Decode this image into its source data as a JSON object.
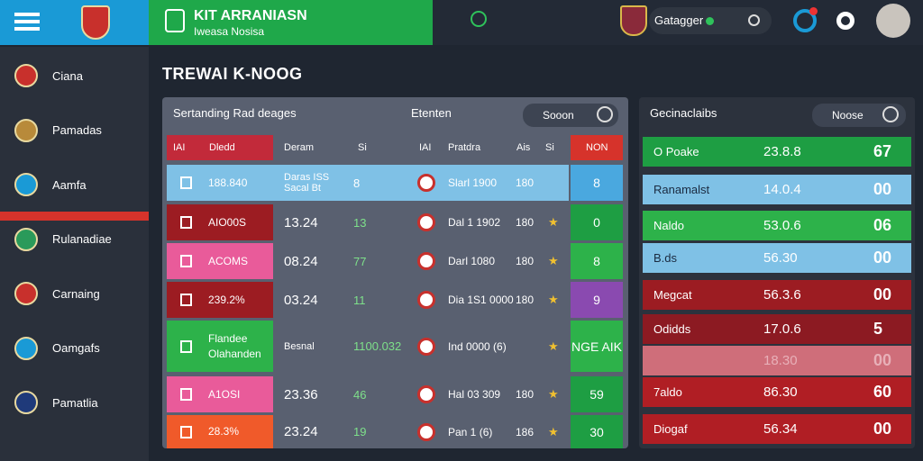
{
  "header": {
    "title": "KIT ARRANIASN",
    "subtitle": "Iweasa Nosisa",
    "search": "Gatagger"
  },
  "sidebar": {
    "items": [
      "Ciana",
      "Pamadas",
      "Aamfa",
      "Rulanadiae",
      "Carnaing",
      "Oamgafs",
      "Pamatlia"
    ]
  },
  "main_title": "TREWAI K-NOOG",
  "standings": {
    "title": "Sertanding Rad deages",
    "subtitle": "Etenten",
    "button": "Sooon",
    "columns": [
      "IAI",
      "Dledd",
      "Deram",
      "Si",
      "IAI",
      "Pratdra",
      "Ais",
      "Si",
      "NON"
    ],
    "rows": [
      [
        "188.840",
        "Daras ISS Sacal Bt",
        "8",
        "Slarl 1900",
        "180",
        "8"
      ],
      [
        "AIO00S",
        "13.24",
        "13",
        "Dal 1 1902",
        "180",
        "0"
      ],
      [
        "ACOMS",
        "08.24",
        "77",
        "Darl 1080",
        "180",
        "8"
      ],
      [
        "239.2%",
        "03.24",
        "11",
        "Dia 1S1 0000",
        "180",
        "9"
      ],
      [
        "Flandee Olahanden",
        "Besnal",
        "1100.032",
        "Ind 0000 (6)",
        "",
        "NGE AIK"
      ],
      [
        "A1OSI",
        "23.36",
        "46",
        "Hal 03 309",
        "180",
        "59"
      ],
      [
        "28.3%",
        "23.24",
        "19",
        "Pan 1 (6)",
        "186",
        "30"
      ]
    ]
  },
  "ranking": {
    "title": "Gecinaclaibs",
    "button": "Noose",
    "rows": [
      [
        "O Poake",
        "23.8.8",
        "67"
      ],
      [
        "Ranamalst",
        "14.0.4",
        "00"
      ],
      [
        "Naldo",
        "53.0.6",
        "06"
      ],
      [
        "B.ds",
        "56.30",
        "00"
      ],
      [
        "Megcat",
        "56.3.6",
        "00"
      ],
      [
        "Odidds",
        "17.0.6",
        "5"
      ],
      [
        "18.30",
        "00"
      ],
      [
        "7aldo",
        "86.30",
        "60"
      ],
      [
        "Diogaf",
        "56.34",
        "00"
      ]
    ]
  }
}
